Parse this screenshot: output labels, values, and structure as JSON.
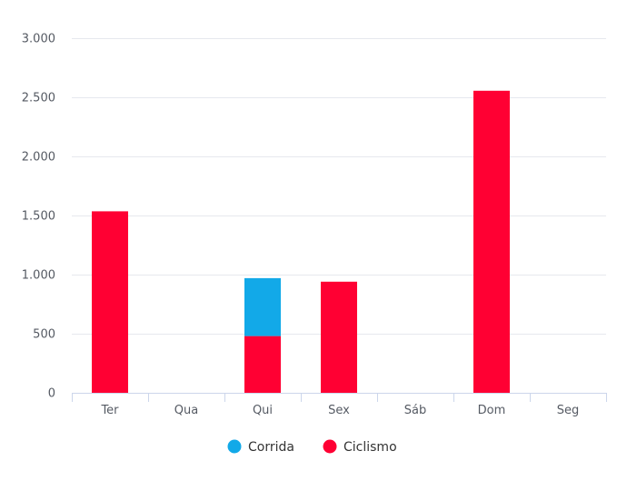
{
  "chart_data": {
    "type": "bar",
    "stacked": true,
    "categories": [
      "Ter",
      "Qua",
      "Qui",
      "Sex",
      "Sáb",
      "Dom",
      "Seg"
    ],
    "series": [
      {
        "name": "Ciclismo",
        "values": [
          1535,
          0,
          480,
          940,
          0,
          2555,
          0
        ]
      },
      {
        "name": "Corrida",
        "values": [
          0,
          0,
          490,
          0,
          0,
          0,
          0
        ]
      }
    ],
    "ylim": [
      0,
      3000
    ],
    "yticks": [
      0,
      500,
      1000,
      1500,
      2000,
      2500,
      3000
    ],
    "ytick_labels": [
      "0",
      "500",
      "1.000",
      "1.500",
      "2.000",
      "2.500",
      "3.000"
    ],
    "grid": true,
    "legend": {
      "position": "bottom-center",
      "order": [
        "Corrida",
        "Ciclismo"
      ]
    },
    "colors": {
      "Corrida": "#12a9e8",
      "Ciclismo": "#ff0033",
      "grid": "#e6e8ee",
      "axis": "#ccd6eb"
    }
  }
}
